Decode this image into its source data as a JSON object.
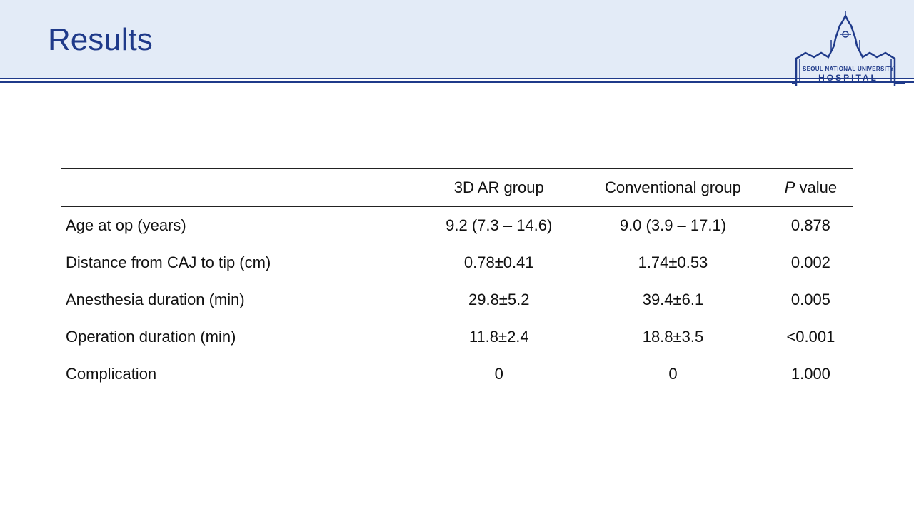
{
  "slide": {
    "title": "Results"
  },
  "logo": {
    "line1": "SEOUL NATIONAL UNIVERSITY",
    "line2": "HOSPITAL",
    "icon": "hospital-building-icon"
  },
  "colors": {
    "accent": "#1f3a8a",
    "header_band": "#e3ebf7"
  },
  "table": {
    "headers": {
      "label": "",
      "ar_group": "3D AR group",
      "conventional_group": "Conventional group",
      "p_italic": "P",
      "p_rest": " value"
    },
    "rows": [
      {
        "label": "Age at op (years)",
        "ar": "9.2 (7.3 – 14.6)",
        "conv": "9.0 (3.9 – 17.1)",
        "p": "0.878"
      },
      {
        "label": "Distance from CAJ to tip (cm)",
        "ar": "0.78±0.41",
        "conv": "1.74±0.53",
        "p": "0.002"
      },
      {
        "label": "Anesthesia duration (min)",
        "ar": "29.8±5.2",
        "conv": "39.4±6.1",
        "p": "0.005"
      },
      {
        "label": "Operation duration (min)",
        "ar": "11.8±2.4",
        "conv": "18.8±3.5",
        "p": "<0.001"
      },
      {
        "label": "Complication",
        "ar": "0",
        "conv": "0",
        "p": "1.000"
      }
    ]
  }
}
